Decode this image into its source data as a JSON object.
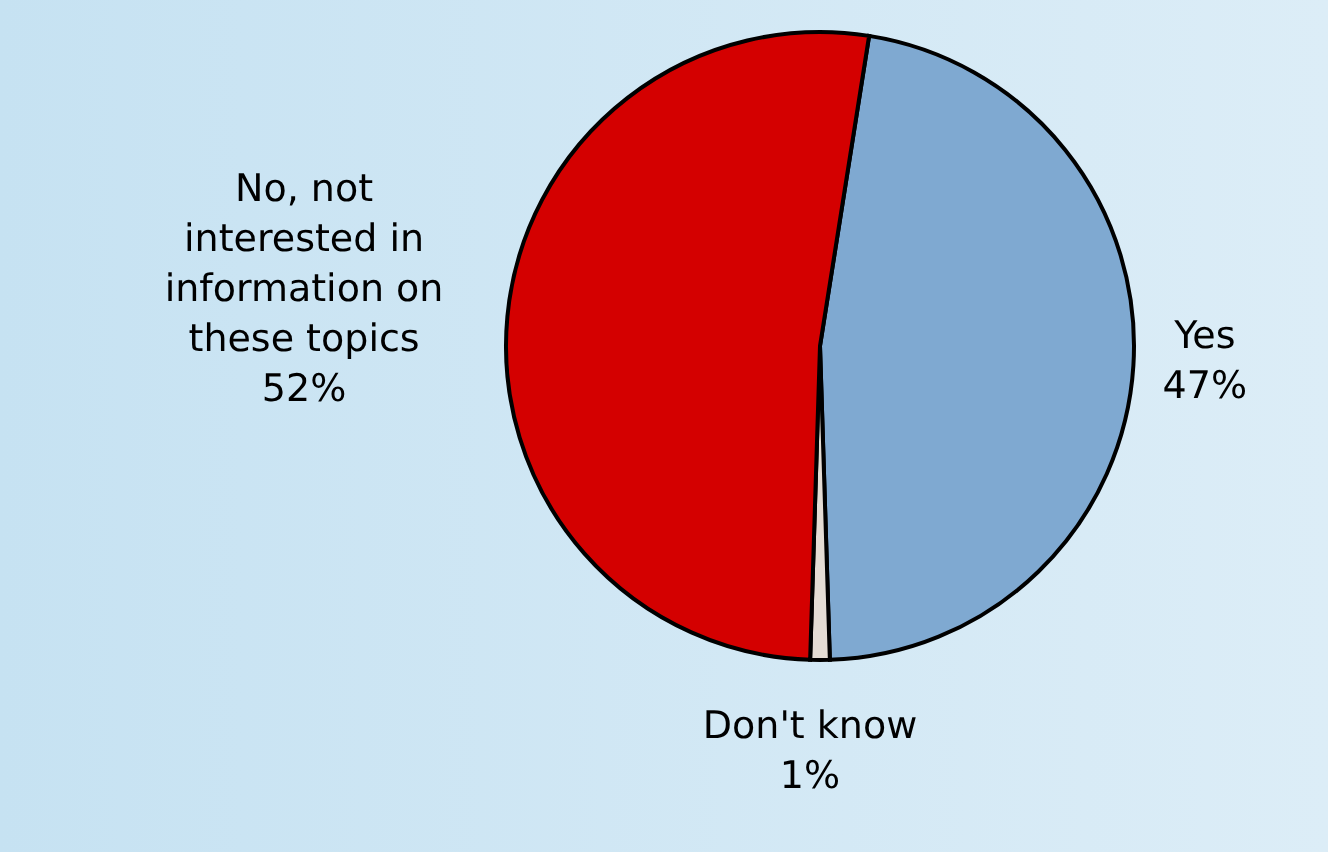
{
  "chart_data": {
    "type": "pie",
    "categories": [
      "Yes",
      "Don't know",
      "No, not interested in information on these topics"
    ],
    "values": [
      47,
      1,
      52
    ],
    "colors": [
      "#7fa9d1",
      "#e4dcd4",
      "#d40000"
    ],
    "value_labels": [
      "47%",
      "1%",
      "52%"
    ],
    "legend": false
  }
}
